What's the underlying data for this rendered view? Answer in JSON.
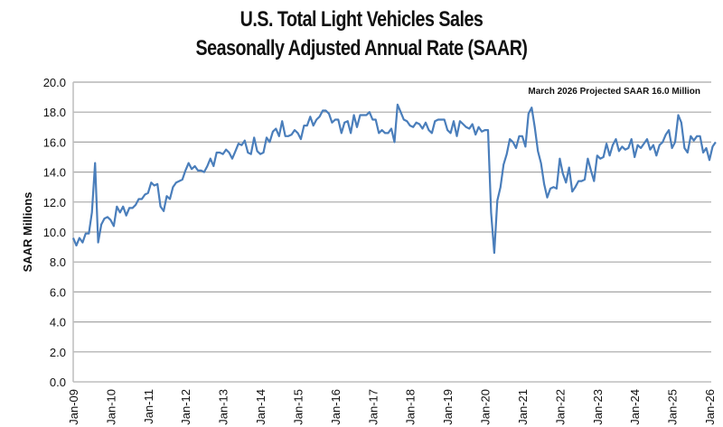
{
  "chart_data": {
    "type": "line",
    "title": "U.S. Total Light Vehicles Sales",
    "subtitle": "Seasonally Adjusted Annual Rate (SAAR)",
    "xlabel": "",
    "ylabel": "SAAR Millions",
    "ylim": [
      0,
      20
    ],
    "yticks": [
      0,
      2,
      4,
      6,
      8,
      10,
      12,
      14,
      16,
      18,
      20
    ],
    "ytick_labels": [
      "0.0",
      "2.0",
      "4.0",
      "6.0",
      "8.0",
      "10.0",
      "12.0",
      "14.0",
      "16.0",
      "18.0",
      "20.0"
    ],
    "x_start": "2009-01",
    "x_frequency": "monthly",
    "xtick_labels": [
      "Jan-09",
      "Jan-10",
      "Jan-11",
      "Jan-12",
      "Jan-13",
      "Jan-14",
      "Jan-15",
      "Jan-16",
      "Jan-17",
      "Jan-18",
      "Jan-19",
      "Jan-20",
      "Jan-21",
      "Jan-22",
      "Jan-23",
      "Jan-24",
      "Jan-25",
      "Jan-26"
    ],
    "grid": "horizontal",
    "legend": "none",
    "annotation": "March 2026 Projected SAAR 16.0 Million",
    "annotation_position": "top-right",
    "line_color": "#4a7ebb",
    "series": [
      {
        "name": "SAAR",
        "values": [
          9.6,
          9.1,
          9.6,
          9.3,
          9.9,
          9.9,
          11.3,
          14.6,
          9.3,
          10.5,
          10.9,
          11.0,
          10.8,
          10.4,
          11.7,
          11.3,
          11.7,
          11.1,
          11.6,
          11.6,
          11.8,
          12.2,
          12.2,
          12.5,
          12.6,
          13.3,
          13.1,
          13.2,
          11.7,
          11.4,
          12.4,
          12.2,
          13.0,
          13.3,
          13.4,
          13.5,
          14.1,
          14.6,
          14.2,
          14.4,
          14.1,
          14.1,
          14.0,
          14.4,
          14.9,
          14.4,
          15.3,
          15.3,
          15.2,
          15.5,
          15.3,
          14.9,
          15.4,
          15.9,
          15.8,
          16.1,
          15.3,
          15.2,
          16.3,
          15.4,
          15.2,
          15.3,
          16.3,
          16.0,
          16.7,
          16.9,
          16.4,
          17.4,
          16.4,
          16.4,
          16.5,
          16.8,
          16.6,
          16.2,
          17.1,
          17.1,
          17.7,
          17.1,
          17.5,
          17.7,
          18.1,
          18.1,
          17.9,
          17.3,
          17.5,
          17.5,
          16.6,
          17.3,
          17.4,
          16.6,
          17.8,
          17.0,
          17.8,
          17.8,
          17.8,
          18.0,
          17.5,
          17.5,
          16.6,
          16.8,
          16.6,
          16.6,
          16.9,
          16.0,
          18.5,
          18.0,
          17.5,
          17.4,
          17.1,
          17.0,
          17.3,
          17.2,
          16.9,
          17.3,
          16.8,
          16.6,
          17.4,
          17.5,
          17.5,
          17.5,
          16.8,
          16.6,
          17.4,
          16.4,
          17.4,
          17.2,
          17.0,
          16.9,
          17.2,
          16.5,
          17.0,
          16.7,
          16.8,
          16.8,
          11.3,
          8.6,
          12.1,
          13.0,
          14.5,
          15.2,
          16.2,
          16.0,
          15.6,
          16.4,
          16.4,
          15.7,
          17.9,
          18.3,
          17.0,
          15.4,
          14.6,
          13.2,
          12.3,
          12.9,
          13.0,
          12.9,
          14.9,
          13.9,
          13.3,
          14.3,
          12.7,
          13.0,
          13.4,
          13.4,
          13.5,
          14.9,
          14.1,
          13.4,
          15.1,
          14.9,
          15.0,
          15.9,
          15.1,
          15.8,
          16.2,
          15.4,
          15.7,
          15.5,
          15.6,
          16.2,
          15.0,
          15.8,
          15.6,
          15.9,
          16.2,
          15.5,
          15.8,
          15.1,
          15.8,
          16.0,
          16.5,
          16.8,
          15.6,
          16.0,
          17.8,
          17.3,
          15.6,
          15.3,
          16.4,
          16.1,
          16.4,
          16.4,
          15.3,
          15.6,
          14.8,
          15.7,
          16.0
        ]
      }
    ]
  }
}
